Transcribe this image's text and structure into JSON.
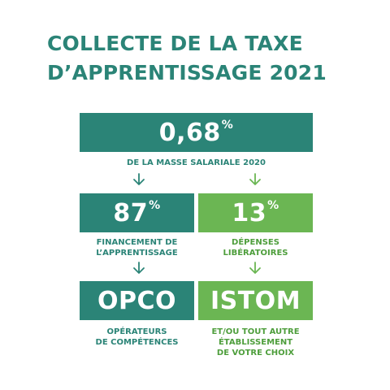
{
  "title": {
    "line1": "COLLECTE DE LA TAXE",
    "line2": "D’APPRENTISSAGE 2021"
  },
  "top_block": {
    "value": "0,68",
    "unit": "%",
    "caption": "DE LA MASSE SALARIALE 2020"
  },
  "left_branch": {
    "value": "87",
    "unit": "%",
    "caption_line1": "FINANCEMENT DE",
    "caption_line2": "L’APPRENTISSAGE",
    "target": "OPCO",
    "target_caption_line1": "OPÉRATEURS",
    "target_caption_line2": "DE COMPÉTENCES"
  },
  "right_branch": {
    "value": "13",
    "unit": "%",
    "caption_line1": "DÉPENSES",
    "caption_line2": "LIBÉRATOIRES",
    "target": "ISTOM",
    "target_caption_line1": "ET/OU TOUT AUTRE",
    "target_caption_line2": "ÉTABLISSEMENT",
    "target_caption_line3": "DE VOTRE CHOIX"
  },
  "colors": {
    "teal": "#2b8477",
    "green": "#6bb653",
    "green_text": "#4e9e3c"
  },
  "icons": {
    "arrow": "arrow-down-icon"
  }
}
